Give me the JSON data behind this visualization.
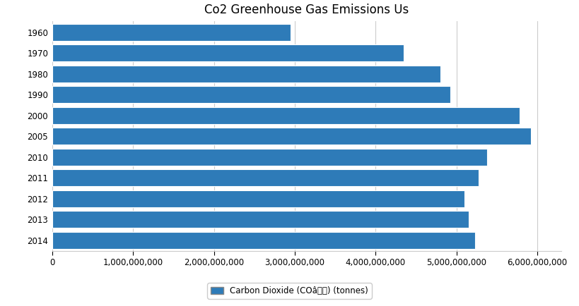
{
  "title": "Co2 Greenhouse Gas Emissions Us",
  "categories": [
    "1960",
    "1970",
    "1980",
    "1990",
    "2000",
    "2005",
    "2010",
    "2011",
    "2012",
    "2013",
    "2014"
  ],
  "values": [
    2950000000,
    4350000000,
    4800000000,
    4920000000,
    5780000000,
    5920000000,
    5380000000,
    5270000000,
    5100000000,
    5150000000,
    5230000000
  ],
  "bar_color": "#2e7bb8",
  "legend_label": "Carbon Dioxide (COâ) (tonnes)",
  "xlim_max": 6300000000,
  "background_color": "#ffffff",
  "grid_color": "#cccccc",
  "title_fontsize": 12,
  "tick_fontsize": 8.5,
  "bar_height": 0.82
}
